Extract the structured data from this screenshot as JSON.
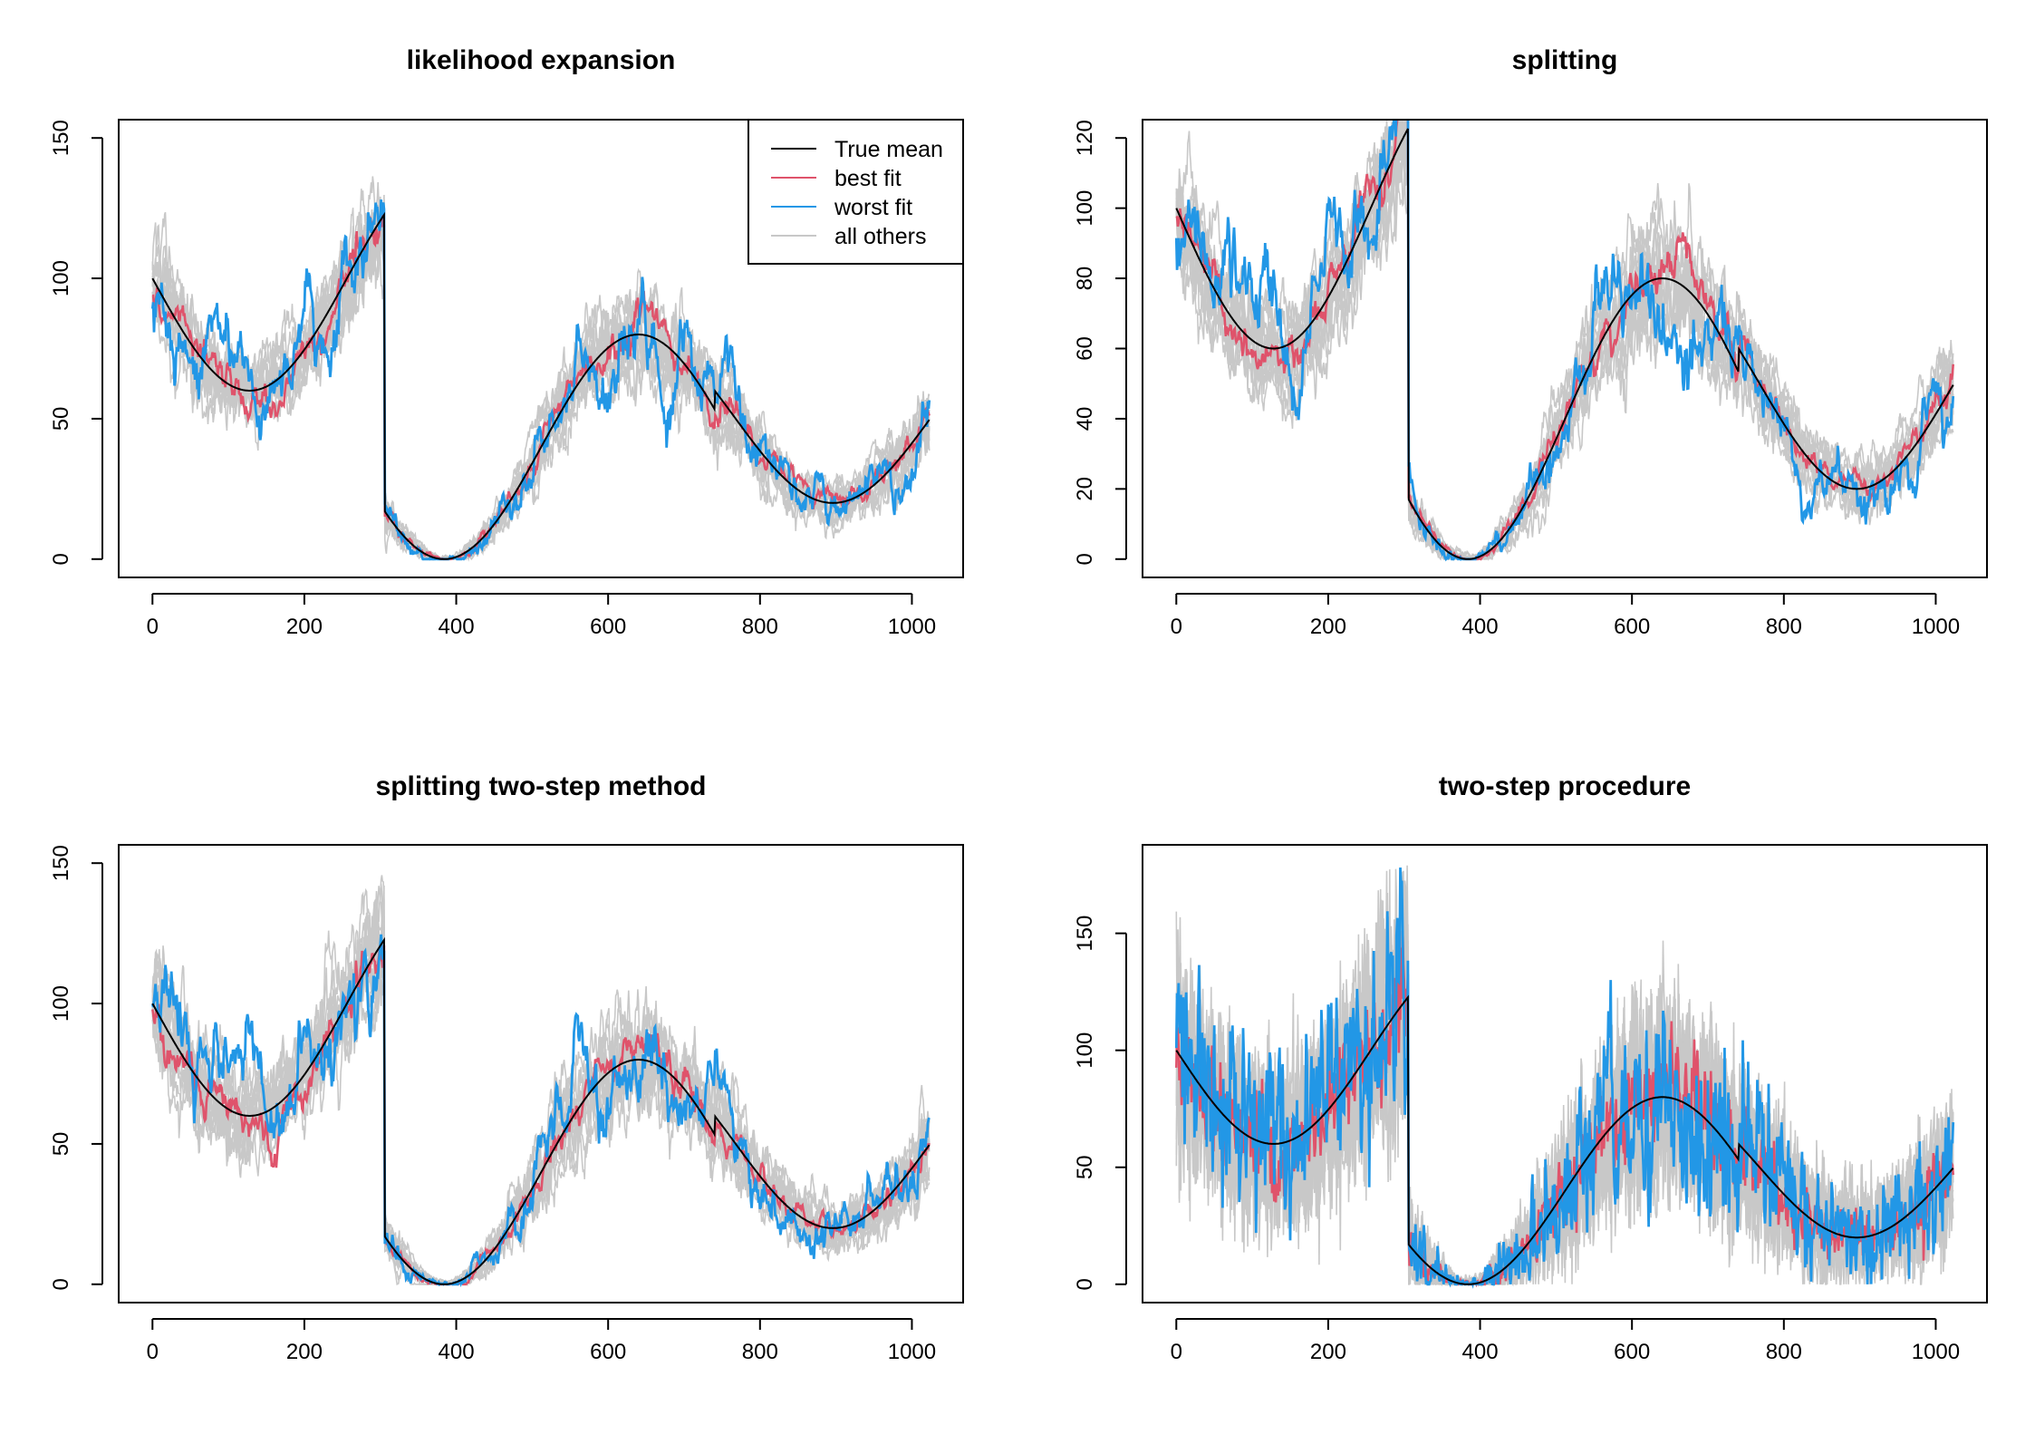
{
  "colors": {
    "true_mean": "#000000",
    "best_fit": "#DF536B",
    "worst_fit": "#2297E6",
    "all_others": "#C8C8C8"
  },
  "legend": {
    "entries": [
      {
        "label": "True mean",
        "color": "#000000"
      },
      {
        "label": "best fit",
        "color": "#DF536B"
      },
      {
        "label": "worst fit",
        "color": "#2297E6"
      },
      {
        "label": "all others",
        "color": "#C8C8C8"
      }
    ],
    "placement": "top-right of first panel"
  },
  "chart_data": [
    {
      "type": "line",
      "title": "likelihood expansion",
      "xlabel": "",
      "ylabel": "",
      "xlim": [
        0,
        1023
      ],
      "ylim": [
        0,
        150
      ],
      "xticks": [
        0,
        200,
        400,
        600,
        800,
        1000
      ],
      "yticks": [
        0,
        50,
        100,
        150
      ],
      "noise": 7,
      "n_others": 14,
      "has_legend": true,
      "series_names": [
        "True mean",
        "best fit",
        "worst fit",
        "all others"
      ]
    },
    {
      "type": "line",
      "title": "splitting",
      "xlabel": "",
      "ylabel": "",
      "xlim": [
        0,
        1023
      ],
      "ylim": [
        0,
        120
      ],
      "xticks": [
        0,
        200,
        400,
        600,
        800,
        1000
      ],
      "yticks": [
        0,
        20,
        40,
        60,
        80,
        100,
        120
      ],
      "noise": 7,
      "n_others": 14,
      "has_legend": false,
      "series_names": [
        "True mean",
        "best fit",
        "worst fit",
        "all others"
      ]
    },
    {
      "type": "line",
      "title": "splitting two-step method",
      "xlabel": "",
      "ylabel": "",
      "xlim": [
        0,
        1023
      ],
      "ylim": [
        0,
        150
      ],
      "xticks": [
        0,
        200,
        400,
        600,
        800,
        1000
      ],
      "yticks": [
        0,
        50,
        100,
        150
      ],
      "noise": 8,
      "n_others": 14,
      "has_legend": false,
      "series_names": [
        "True mean",
        "best fit",
        "worst fit",
        "all others"
      ]
    },
    {
      "type": "line",
      "title": "two-step procedure",
      "xlabel": "",
      "ylabel": "",
      "xlim": [
        0,
        1023
      ],
      "ylim": [
        0,
        180
      ],
      "xticks": [
        0,
        200,
        400,
        600,
        800,
        1000
      ],
      "yticks": [
        0,
        50,
        100,
        150
      ],
      "noise": 14,
      "n_others": 14,
      "has_legend": false,
      "series_names": [
        "True mean",
        "best fit",
        "worst fit",
        "all others"
      ]
    }
  ]
}
